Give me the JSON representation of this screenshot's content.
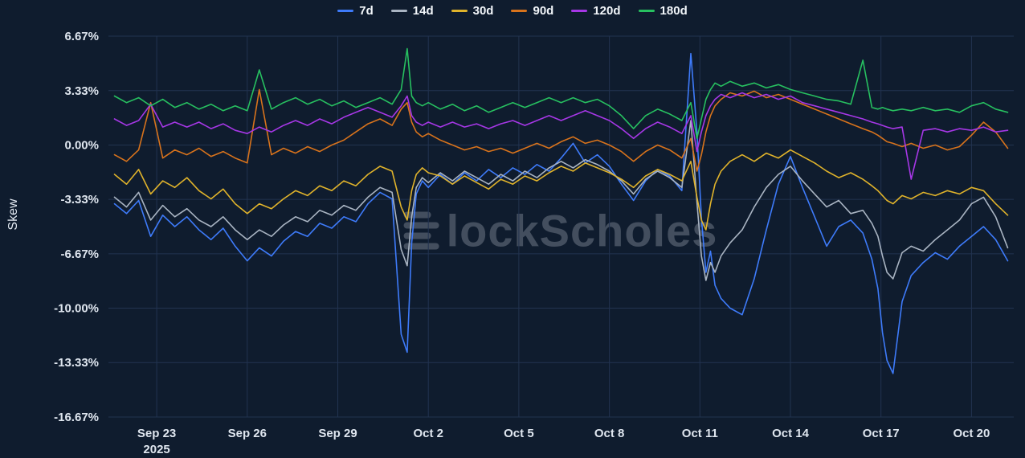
{
  "watermark": {
    "brand": "BlockScholes",
    "text": "lockScholes"
  },
  "chart_data": {
    "type": "line",
    "title": "",
    "ylabel": "Skew",
    "grid": true,
    "legend_position": "top",
    "ylim": [
      -16.67,
      6.67
    ],
    "xlim": [
      -0.6,
      29.4
    ],
    "x_description": "day index, 0 = Sep 22 2025",
    "yticks": [
      {
        "value": 6.67,
        "label": "6.67%"
      },
      {
        "value": 3.33,
        "label": "3.33%"
      },
      {
        "value": 0,
        "label": "0.00%"
      },
      {
        "value": -3.33,
        "label": "-3.33%"
      },
      {
        "value": -6.67,
        "label": "-6.67%"
      },
      {
        "value": -10,
        "label": "-10.00%"
      },
      {
        "value": -13.33,
        "label": "-13.33%"
      },
      {
        "value": -16.67,
        "label": "-16.67%"
      }
    ],
    "xticks": [
      {
        "value": 1,
        "label": "Sep 23",
        "sublabel": "2025"
      },
      {
        "value": 4,
        "label": "Sep 26"
      },
      {
        "value": 7,
        "label": "Sep 29"
      },
      {
        "value": 10,
        "label": "Oct 2"
      },
      {
        "value": 13,
        "label": "Oct 5"
      },
      {
        "value": 16,
        "label": "Oct 8"
      },
      {
        "value": 19,
        "label": "Oct 11"
      },
      {
        "value": 22,
        "label": "Oct 14"
      },
      {
        "value": 25,
        "label": "Oct 17"
      },
      {
        "value": 28,
        "label": "Oct 20"
      }
    ],
    "x": [
      -0.4,
      0,
      0.4,
      0.8,
      1.2,
      1.6,
      2,
      2.4,
      2.8,
      3.2,
      3.6,
      4,
      4.4,
      4.8,
      5.2,
      5.6,
      6,
      6.4,
      6.8,
      7.2,
      7.6,
      8,
      8.4,
      8.8,
      9.1,
      9.3,
      9.45,
      9.6,
      9.8,
      10,
      10.4,
      10.8,
      11.2,
      11.6,
      12,
      12.4,
      12.8,
      13.2,
      13.6,
      14,
      14.4,
      14.8,
      15.2,
      15.6,
      16,
      16.4,
      16.8,
      17.2,
      17.6,
      18,
      18.4,
      18.7,
      18.9,
      19.05,
      19.2,
      19.35,
      19.5,
      19.7,
      20,
      20.4,
      20.8,
      21.2,
      21.6,
      22,
      22.4,
      22.8,
      23.2,
      23.6,
      24,
      24.4,
      24.7,
      24.9,
      25.05,
      25.2,
      25.4,
      25.7,
      26,
      26.4,
      26.8,
      27.2,
      27.6,
      28,
      28.4,
      28.8,
      29.2
    ],
    "series": [
      {
        "name": "7d",
        "color": "#3e7bfa",
        "values": [
          -3.6,
          -4.2,
          -3.4,
          -5.6,
          -4.3,
          -5,
          -4.4,
          -5.2,
          -5.8,
          -5.1,
          -6.2,
          -7.1,
          -6.3,
          -6.8,
          -5.9,
          -5.3,
          -5.6,
          -4.8,
          -5.1,
          -4.4,
          -4.7,
          -3.6,
          -2.9,
          -3.3,
          -11.6,
          -12.7,
          -6,
          -3,
          -2.2,
          -2.6,
          -1.8,
          -2.4,
          -1.7,
          -2.2,
          -1.5,
          -2,
          -1.4,
          -1.8,
          -1.2,
          -1.6,
          -0.8,
          0.1,
          -1.1,
          -0.6,
          -1.3,
          -2.4,
          -3.4,
          -2.2,
          -1.5,
          -1.9,
          -2.8,
          5.6,
          0.8,
          -4.5,
          -7.8,
          -6.5,
          -8.6,
          -9.4,
          -10,
          -10.4,
          -8.2,
          -5.2,
          -2.4,
          -0.7,
          -2.6,
          -4.4,
          -6.2,
          -5,
          -4.6,
          -5.4,
          -7,
          -8.8,
          -11.5,
          -13.2,
          -14,
          -9.6,
          -8,
          -7.2,
          -6.6,
          -7,
          -6.2,
          -5.6,
          -5,
          -5.8,
          -7.1
        ]
      },
      {
        "name": "14d",
        "color": "#a9b4c2",
        "values": [
          -3.2,
          -3.8,
          -2.9,
          -4.6,
          -3.7,
          -4.4,
          -3.9,
          -4.6,
          -5,
          -4.4,
          -5.2,
          -5.8,
          -5.2,
          -5.6,
          -4.9,
          -4.4,
          -4.7,
          -4,
          -4.3,
          -3.7,
          -4,
          -3.2,
          -2.6,
          -2.9,
          -6.4,
          -7.4,
          -4.4,
          -2.6,
          -2,
          -2.3,
          -1.7,
          -2.2,
          -1.6,
          -2,
          -2.4,
          -1.8,
          -2.2,
          -1.6,
          -2,
          -1.4,
          -1,
          -1.4,
          -0.9,
          -1.2,
          -1.6,
          -2.2,
          -3,
          -2.1,
          -1.6,
          -2,
          -2.6,
          1.5,
          -3.5,
          -6.8,
          -8.3,
          -7.2,
          -7.8,
          -6.8,
          -6,
          -5.2,
          -3.8,
          -2.6,
          -1.8,
          -1.3,
          -2.2,
          -3,
          -3.8,
          -3.4,
          -4.2,
          -4,
          -4.8,
          -5.6,
          -6.8,
          -7.8,
          -8.2,
          -6.6,
          -6.2,
          -6.5,
          -5.8,
          -5.2,
          -4.6,
          -3.6,
          -3.2,
          -4.4,
          -6.3
        ]
      },
      {
        "name": "30d",
        "color": "#e0b32b",
        "values": [
          -1.8,
          -2.4,
          -1.5,
          -3,
          -2.2,
          -2.6,
          -2,
          -2.8,
          -3.3,
          -2.7,
          -3.6,
          -4.2,
          -3.6,
          -3.9,
          -3.3,
          -2.8,
          -3.1,
          -2.5,
          -2.8,
          -2.2,
          -2.5,
          -1.8,
          -1.3,
          -1.6,
          -3.8,
          -4.6,
          -2.8,
          -1.8,
          -1.4,
          -1.7,
          -1.9,
          -2.4,
          -1.9,
          -2.3,
          -2.7,
          -2.1,
          -2.4,
          -1.9,
          -2.2,
          -1.7,
          -1.3,
          -1.6,
          -1.1,
          -1.4,
          -1.7,
          -2.1,
          -2.6,
          -1.9,
          -1.5,
          -1.8,
          -2.2,
          -1,
          -3.2,
          -4.6,
          -5.2,
          -3.6,
          -2.4,
          -1.6,
          -1,
          -0.6,
          -1,
          -0.5,
          -0.8,
          -0.3,
          -0.7,
          -1.1,
          -1.6,
          -2,
          -1.7,
          -2.1,
          -2.5,
          -2.8,
          -3.1,
          -3.4,
          -3.6,
          -3.1,
          -3.3,
          -2.9,
          -3.1,
          -2.8,
          -3,
          -2.6,
          -2.8,
          -3.6,
          -4.3
        ]
      },
      {
        "name": "90d",
        "color": "#d8731c",
        "values": [
          -0.6,
          -1,
          -0.3,
          2.6,
          -0.8,
          -0.3,
          -0.6,
          -0.2,
          -0.7,
          -0.4,
          -0.8,
          -1.1,
          3.4,
          -0.6,
          -0.2,
          -0.5,
          -0.1,
          -0.4,
          0,
          0.3,
          0.8,
          1.3,
          1.6,
          1.2,
          2.2,
          2.6,
          1.4,
          0.8,
          0.5,
          0.7,
          0.3,
          0,
          -0.3,
          -0.1,
          -0.4,
          -0.2,
          -0.5,
          -0.2,
          0.1,
          -0.2,
          0.2,
          0.5,
          0.1,
          0.3,
          0,
          -0.4,
          -1,
          -0.4,
          0,
          -0.3,
          -0.8,
          0.4,
          -1.6,
          -0.6,
          0.8,
          1.8,
          2.4,
          2.8,
          3.2,
          3,
          3.3,
          2.9,
          3.1,
          2.8,
          2.5,
          2.2,
          1.9,
          1.6,
          1.3,
          1,
          0.8,
          0.6,
          0.4,
          0.2,
          0.1,
          -0.1,
          0.1,
          -0.2,
          0,
          -0.3,
          -0.1,
          0.6,
          1.4,
          0.8,
          -0.2
        ]
      },
      {
        "name": "120d",
        "color": "#a637e6",
        "values": [
          1.6,
          1.2,
          1.5,
          2.5,
          1.1,
          1.4,
          1.1,
          1.4,
          1,
          1.3,
          0.9,
          0.7,
          1.1,
          0.8,
          1.2,
          1.5,
          1.2,
          1.6,
          1.3,
          1.7,
          2,
          2.3,
          2,
          1.7,
          2.4,
          3,
          1.8,
          1.4,
          1.2,
          1.4,
          1.1,
          1.4,
          1.1,
          1.3,
          1,
          1.3,
          1.5,
          1.2,
          1.5,
          1.8,
          1.5,
          1.8,
          2.1,
          1.8,
          1.5,
          1,
          0.4,
          1,
          1.4,
          1.1,
          0.7,
          1.8,
          -0.4,
          0.8,
          1.8,
          2.4,
          2.8,
          3.1,
          2.9,
          3.2,
          2.9,
          3.1,
          2.8,
          3,
          2.6,
          2.4,
          2.2,
          2,
          1.8,
          1.6,
          1.4,
          1.3,
          1.2,
          1.1,
          1,
          1.1,
          -2.1,
          0.9,
          1,
          0.8,
          1,
          0.9,
          1.1,
          0.8,
          0.9
        ]
      },
      {
        "name": "180d",
        "color": "#27c060",
        "values": [
          3,
          2.6,
          2.9,
          2.4,
          2.8,
          2.3,
          2.6,
          2.2,
          2.5,
          2.1,
          2.4,
          2.1,
          4.6,
          2.2,
          2.6,
          2.9,
          2.5,
          2.8,
          2.4,
          2.7,
          2.3,
          2.6,
          2.9,
          2.5,
          3.4,
          5.9,
          3,
          2.6,
          2.4,
          2.6,
          2.2,
          2.5,
          2.1,
          2.4,
          2,
          2.3,
          2.6,
          2.3,
          2.6,
          2.9,
          2.6,
          2.9,
          2.6,
          2.8,
          2.4,
          1.8,
          1,
          1.8,
          2.2,
          1.9,
          1.5,
          2.6,
          0.4,
          1.6,
          2.8,
          3.4,
          3.8,
          3.6,
          3.9,
          3.6,
          3.8,
          3.5,
          3.7,
          3.4,
          3.2,
          3,
          2.8,
          2.7,
          2.5,
          5.2,
          2.3,
          2.2,
          2.3,
          2.2,
          2.1,
          2.2,
          2.1,
          2.3,
          2.1,
          2.2,
          2,
          2.4,
          2.6,
          2.2,
          2
        ]
      }
    ]
  }
}
